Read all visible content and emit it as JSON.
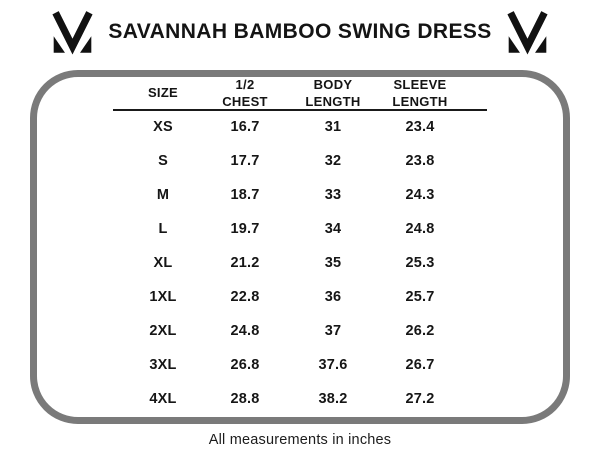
{
  "header": {
    "title": "SAVANNAH BAMBOO SWING DRESS",
    "logo_left": "brand-m-checkmark-logo",
    "logo_right": "brand-m-checkmark-logo"
  },
  "size_chart": {
    "headers": [
      "SIZE",
      "1/2 CHEST",
      "BODY\nLENGTH",
      "SLEEVE\nLENGTH"
    ],
    "rows": [
      [
        "XS",
        "16.7",
        "31",
        "23.4"
      ],
      [
        "S",
        "17.7",
        "32",
        "23.8"
      ],
      [
        "M",
        "18.7",
        "33",
        "24.3"
      ],
      [
        "L",
        "19.7",
        "34",
        "24.8"
      ],
      [
        "XL",
        "21.2",
        "35",
        "25.3"
      ],
      [
        "1XL",
        "22.8",
        "36",
        "25.7"
      ],
      [
        "2XL",
        "24.8",
        "37",
        "26.2"
      ],
      [
        "3XL",
        "26.8",
        "37.6",
        "26.7"
      ],
      [
        "4XL",
        "28.8",
        "38.2",
        "27.2"
      ]
    ]
  },
  "footer": {
    "note": "All measurements in inches"
  },
  "colors": {
    "border_gray": "#7a7a7a",
    "text_black": "#141414",
    "underline_black": "#1a1a1a",
    "background": "#ffffff"
  },
  "chart_data": {
    "type": "table",
    "title": "SAVANNAH BAMBOO SWING DRESS",
    "columns": [
      "SIZE",
      "1/2 CHEST",
      "BODY LENGTH",
      "SLEEVE LENGTH"
    ],
    "rows": [
      [
        "XS",
        16.7,
        31,
        23.4
      ],
      [
        "S",
        17.7,
        32,
        23.8
      ],
      [
        "M",
        18.7,
        33,
        24.3
      ],
      [
        "L",
        19.7,
        34,
        24.8
      ],
      [
        "XL",
        21.2,
        35,
        25.3
      ],
      [
        "1XL",
        22.8,
        36,
        25.7
      ],
      [
        "2XL",
        24.8,
        37,
        26.2
      ],
      [
        "3XL",
        26.8,
        37.6,
        26.7
      ],
      [
        "4XL",
        28.8,
        38.2,
        27.2
      ]
    ],
    "note": "All measurements in inches"
  }
}
